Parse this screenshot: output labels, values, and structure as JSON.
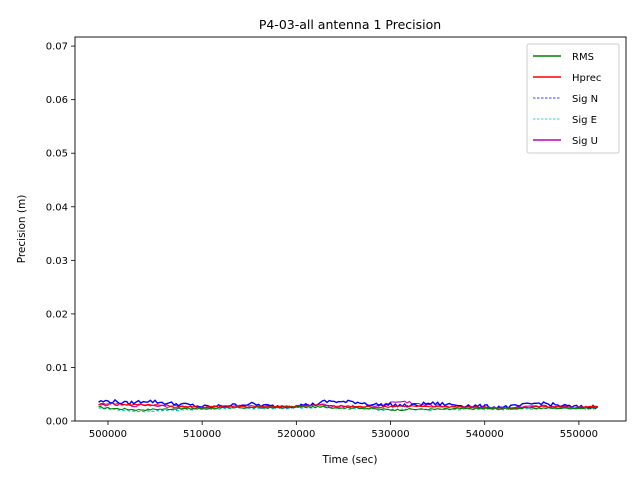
{
  "chart_data": {
    "type": "line",
    "title": "P4-03-all antenna 1 Precision",
    "xlabel": "Time (sec)",
    "ylabel": "Precision (m)",
    "xlim": [
      496500,
      555000
    ],
    "ylim": [
      0,
      0.0717
    ],
    "xticks": [
      500000,
      510000,
      520000,
      530000,
      540000,
      550000
    ],
    "xtick_labels": [
      "500000",
      "510000",
      "520000",
      "530000",
      "540000",
      "550000"
    ],
    "yticks": [
      0.0,
      0.01,
      0.02,
      0.03,
      0.04,
      0.05,
      0.06,
      0.07
    ],
    "ytick_labels": [
      "0.00",
      "0.01",
      "0.02",
      "0.03",
      "0.04",
      "0.05",
      "0.06",
      "0.07"
    ],
    "grid": false,
    "legend_position": "top-right",
    "x": [
      499000,
      500000,
      501000,
      502000,
      503000,
      504000,
      505000,
      506000,
      507000,
      508000,
      509000,
      510000,
      511000,
      512000,
      513000,
      514000,
      515000,
      516000,
      517000,
      518000,
      519000,
      520000,
      521000,
      522000,
      523000,
      524000,
      525000,
      526000,
      527000,
      528000,
      529000,
      530000,
      531000,
      532000,
      533000,
      534000,
      535000,
      536000,
      537000,
      538000,
      539000,
      540000,
      541000,
      542000,
      543000,
      544000,
      545000,
      546000,
      547000,
      548000,
      549000,
      550000,
      551000,
      552000
    ],
    "series": [
      {
        "name": "RMS",
        "color": "#008000",
        "dash": "solid",
        "values": [
          0.0026,
          0.0024,
          0.0023,
          0.0022,
          0.0021,
          0.0021,
          0.0022,
          0.0022,
          0.0023,
          0.0023,
          0.0023,
          0.0023,
          0.0024,
          0.0024,
          0.0024,
          0.0025,
          0.0025,
          0.0025,
          0.0025,
          0.0025,
          0.0025,
          0.0026,
          0.0026,
          0.0026,
          0.0026,
          0.0025,
          0.0025,
          0.0025,
          0.0024,
          0.0023,
          0.0022,
          0.0021,
          0.0021,
          0.0022,
          0.0022,
          0.0022,
          0.0022,
          0.0022,
          0.0023,
          0.0023,
          0.0023,
          0.0023,
          0.0023,
          0.0023,
          0.0023,
          0.0024,
          0.0024,
          0.0024,
          0.0024,
          0.0024,
          0.0024,
          0.0024,
          0.0024,
          0.0025
        ]
      },
      {
        "name": "Hprec",
        "color": "#ff0000",
        "dash": "solid",
        "values": [
          0.0031,
          0.0033,
          0.0032,
          0.0031,
          0.003,
          0.0031,
          0.003,
          0.0029,
          0.0028,
          0.0027,
          0.0026,
          0.0026,
          0.0027,
          0.0028,
          0.0028,
          0.0028,
          0.0028,
          0.0027,
          0.0027,
          0.0027,
          0.0027,
          0.0028,
          0.0029,
          0.003,
          0.0029,
          0.0028,
          0.0028,
          0.0027,
          0.0027,
          0.0026,
          0.0026,
          0.0027,
          0.0028,
          0.0028,
          0.0027,
          0.0026,
          0.0027,
          0.0027,
          0.0027,
          0.0026,
          0.0026,
          0.0026,
          0.0025,
          0.0024,
          0.0024,
          0.0025,
          0.0026,
          0.0027,
          0.0027,
          0.0026,
          0.0025,
          0.0025,
          0.0026,
          0.0027
        ]
      },
      {
        "name": "Sig N",
        "color": "#0000ff",
        "dash": "dashed",
        "values": [
          0.0036,
          0.0037,
          0.0036,
          0.0033,
          0.0035,
          0.0038,
          0.0036,
          0.0034,
          0.0032,
          0.0031,
          0.0029,
          0.0027,
          0.0026,
          0.0028,
          0.0029,
          0.003,
          0.0032,
          0.003,
          0.0028,
          0.0027,
          0.0028,
          0.0029,
          0.003,
          0.0031,
          0.0036,
          0.0037,
          0.0035,
          0.0036,
          0.0034,
          0.0031,
          0.003,
          0.003,
          0.0029,
          0.0028,
          0.003,
          0.0033,
          0.0032,
          0.0031,
          0.003,
          0.0029,
          0.0028,
          0.0027,
          0.0026,
          0.0026,
          0.0027,
          0.0029,
          0.0032,
          0.0034,
          0.0031,
          0.0029,
          0.0027,
          0.0026,
          0.0026,
          0.0027
        ]
      },
      {
        "name": "Sig E",
        "color": "#00bfbf",
        "dash": "dashed",
        "values": [
          0.0024,
          0.0023,
          0.0021,
          0.0019,
          0.0018,
          0.0018,
          0.0019,
          0.0019,
          0.002,
          0.0021,
          0.0022,
          0.0022,
          0.0023,
          0.0023,
          0.0024,
          0.0024,
          0.0024,
          0.0024,
          0.0024,
          0.0024,
          0.0024,
          0.0025,
          0.0025,
          0.0025,
          0.0025,
          0.0025,
          0.0024,
          0.0023,
          0.0023,
          0.0022,
          0.0021,
          0.0021,
          0.0021,
          0.0021,
          0.0021,
          0.0021,
          0.0021,
          0.0021,
          0.0022,
          0.0022,
          0.0022,
          0.0022,
          0.0022,
          0.0022,
          0.0023,
          0.0023,
          0.0023,
          0.0023,
          0.0023,
          0.0023,
          0.0023,
          0.0023,
          0.0023,
          0.0024
        ]
      },
      {
        "name": "Sig U",
        "color": "#bf00bf",
        "dash": "solid",
        "values": [
          0.0029,
          0.0031,
          0.003,
          0.0029,
          0.0029,
          0.003,
          0.0029,
          0.0028,
          0.0027,
          0.0026,
          0.0025,
          0.0025,
          0.0026,
          0.0027,
          0.0027,
          0.0028,
          0.0027,
          0.0026,
          0.0026,
          0.0026,
          0.0027,
          0.0028,
          0.0029,
          0.003,
          0.0029,
          0.0028,
          0.0027,
          0.0027,
          0.0026,
          0.0027,
          0.003,
          0.0034,
          0.0036,
          0.0035,
          0.0031,
          0.0029,
          0.0028,
          0.0027,
          0.0027,
          0.0027,
          0.0026,
          0.0026,
          0.0025,
          0.0024,
          0.0024,
          0.0025,
          0.0026,
          0.0027,
          0.0027,
          0.0026,
          0.0025,
          0.0025,
          0.0026,
          0.0027
        ]
      }
    ]
  }
}
